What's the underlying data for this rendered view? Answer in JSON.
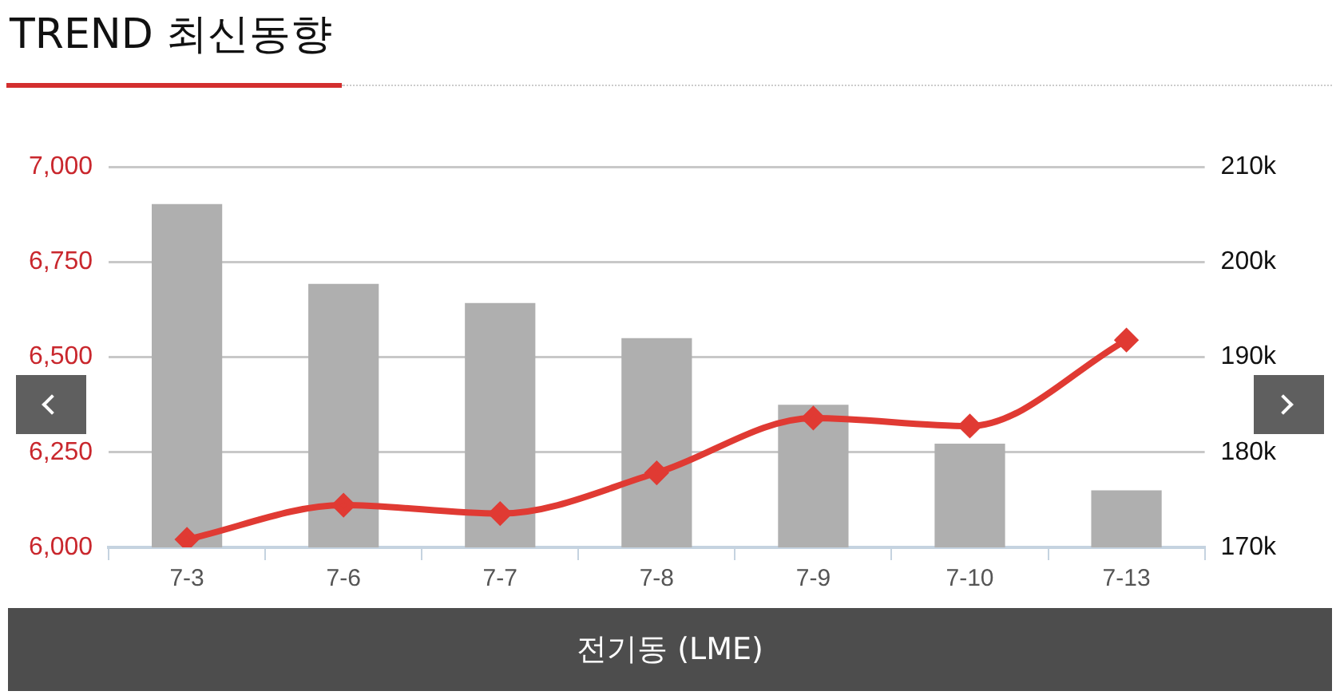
{
  "chart_data": {
    "type": "bar",
    "title": "TREND 최신동향",
    "xlabel": "전기동 (LME)",
    "categories": [
      "7-3",
      "7-6",
      "7-7",
      "7-8",
      "7-9",
      "7-10",
      "7-13"
    ],
    "series": [
      {
        "axis": "y2",
        "color": "#afafaf",
        "values": [
          206100,
          197700,
          195700,
          192000,
          185000,
          180900,
          176000
        ]
      },
      {
        "type": "line",
        "axis": "y",
        "color": "#e03a33",
        "marker": "diamond",
        "values": [
          6021,
          6111,
          6089,
          6196,
          6340,
          6319,
          6545
        ]
      }
    ],
    "ylim": [
      6000,
      7000
    ],
    "yticks": [
      {
        "value": 6000,
        "label": "6,000"
      },
      {
        "value": 6250,
        "label": "6,250"
      },
      {
        "value": 6500,
        "label": "6,500"
      },
      {
        "value": 6750,
        "label": "6,750"
      },
      {
        "value": 7000,
        "label": "7,000"
      }
    ],
    "y2lim": [
      170000,
      210000
    ],
    "y2ticks": [
      {
        "value": 170000,
        "label": "170k"
      },
      {
        "value": 180000,
        "label": "180k"
      },
      {
        "value": 190000,
        "label": "190k"
      },
      {
        "value": 200000,
        "label": "200k"
      },
      {
        "value": 210000,
        "label": "210k"
      }
    ],
    "grid": "y",
    "legend": false
  }
}
